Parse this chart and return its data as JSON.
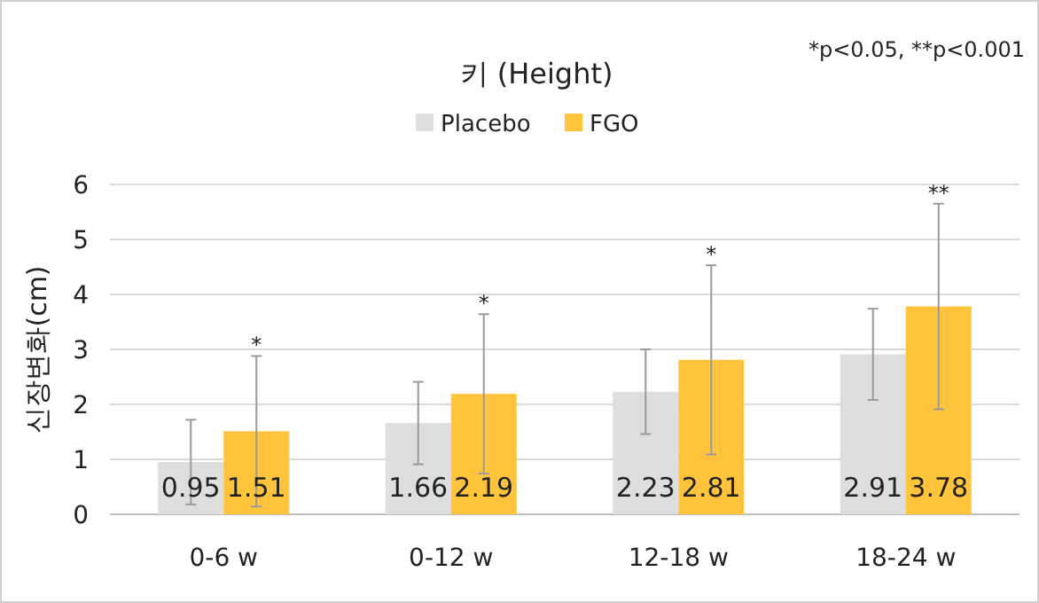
{
  "chart_data": {
    "type": "bar",
    "title": "키 (Height)",
    "ylabel": "신장변화(cm)",
    "categories": [
      "0-6 w",
      "0-12 w",
      "12-18 w",
      "18-24 w"
    ],
    "series": [
      {
        "name": "Placebo",
        "color": "#dedede",
        "values": [
          0.95,
          1.66,
          2.23,
          2.91
        ],
        "errors": [
          0.77,
          0.75,
          0.77,
          0.83
        ]
      },
      {
        "name": "FGO",
        "color": "#ffc33c",
        "values": [
          1.51,
          2.19,
          2.81,
          3.78
        ],
        "errors": [
          1.37,
          1.45,
          1.72,
          1.87
        ]
      }
    ],
    "ylim": [
      0,
      6
    ],
    "yticks": [
      0,
      1,
      2,
      3,
      4,
      5,
      6
    ],
    "grid": "y",
    "legend": "top",
    "data_labels": true,
    "annotations": [
      "*p<0.05, **p<0.001",
      "*",
      "*",
      "*",
      "**"
    ]
  }
}
